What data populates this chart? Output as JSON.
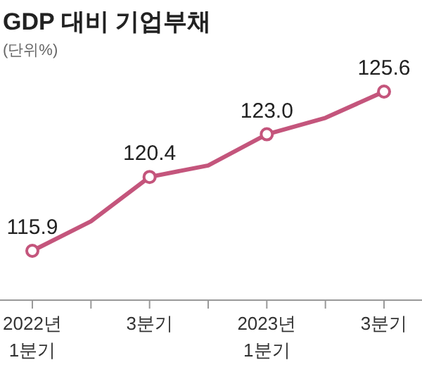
{
  "chart_data": {
    "type": "line",
    "title": "GDP 대비 기업부채",
    "subtitle": "(단위%)",
    "categories": [
      "2022년\n1분기",
      null,
      "3분기",
      null,
      "2023년\n1분기",
      null,
      "3분기"
    ],
    "series": [
      {
        "color": "#c4557c",
        "values": [
          115.9,
          117.7,
          120.4,
          121.1,
          123.0,
          124.0,
          125.6
        ],
        "value_labels": [
          "115.9",
          null,
          "120.4",
          null,
          "123.0",
          null,
          "125.6"
        ]
      }
    ],
    "tick_labels": "x",
    "marker": "circle",
    "line_style": "solid"
  }
}
